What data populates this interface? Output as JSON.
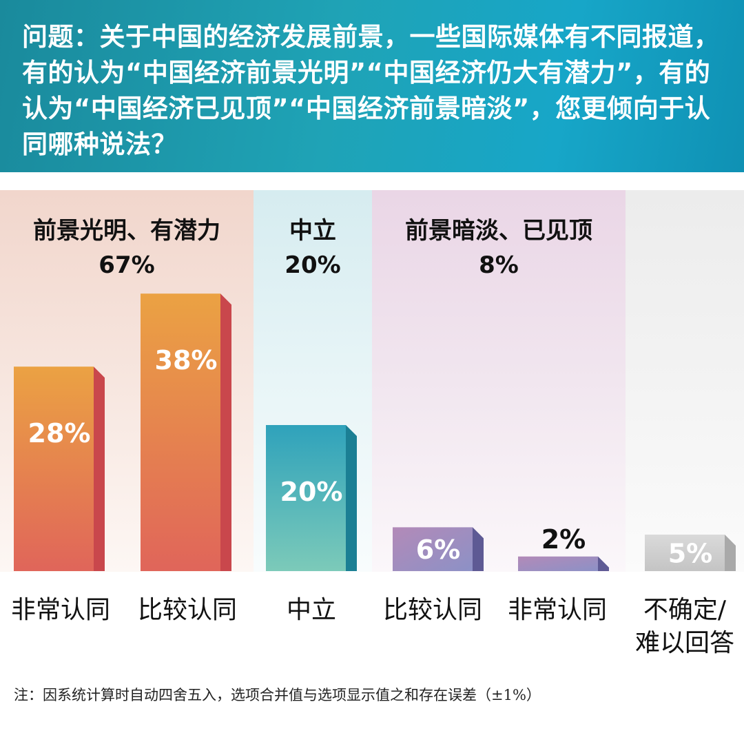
{
  "question": "问题：关于中国的经济发展前景，一些国际媒体有不同报道，有的认为“中国经济前景光明”“中国经济仍大有潜力”，有的认为“中国经济已见顶”“中国经济前景暗淡”，您更倾向于认同哪种说法？",
  "groups": [
    {
      "label": "前景光明、有潜力",
      "value": "67%"
    },
    {
      "label": "中立",
      "value": "20%"
    },
    {
      "label": "前景暗淡、已见顶",
      "value": "8%"
    }
  ],
  "categories": [
    {
      "label": "非常认同"
    },
    {
      "label": "比较认同"
    },
    {
      "label": "中立"
    },
    {
      "label": "比较认同"
    },
    {
      "label": "非常认同"
    },
    {
      "label": "不确定/\n难以回答"
    }
  ],
  "chart_data": {
    "type": "bar",
    "categories": [
      "非常认同",
      "比较认同",
      "中立",
      "比较认同",
      "非常认同",
      "不确定/难以回答"
    ],
    "values": [
      28,
      38,
      20,
      6,
      2,
      5
    ],
    "value_labels": [
      "28%",
      "38%",
      "20%",
      "6%",
      "2%",
      "5%"
    ],
    "groups": [
      {
        "label": "前景光明、有潜力",
        "value": 67,
        "members": [
          0,
          1
        ]
      },
      {
        "label": "中立",
        "value": 20,
        "members": [
          2
        ]
      },
      {
        "label": "前景暗淡、已见顶",
        "value": 8,
        "members": [
          3,
          4
        ]
      }
    ],
    "colors": [
      "#e8883c",
      "#e8883c",
      "#3aa6b9",
      "#9a88be",
      "#9a88be",
      "#cfcfcf"
    ],
    "ylim": [
      0,
      45
    ]
  },
  "footnote": "注：因系统计算时自动四舍五入，选项合并值与选项显示值之和存在误差（±1%）"
}
